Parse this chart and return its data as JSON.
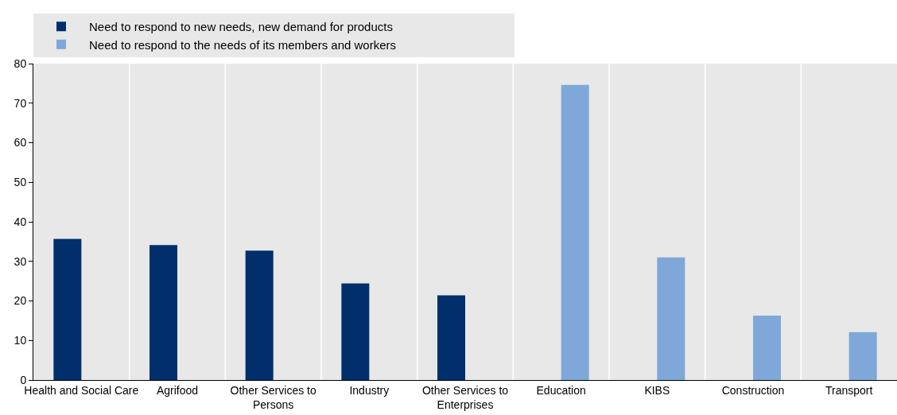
{
  "chart_data": {
    "type": "bar",
    "categories": [
      "Health and Social Care",
      "Agrifood",
      "Other Services to Persons",
      "Industry",
      "Other Services to Enterprises",
      "Education",
      "KIBS",
      "Construction",
      "Transport"
    ],
    "series": [
      {
        "name": "Need to respond to new needs, new demand for products",
        "color": "#002f6c",
        "values": [
          35.7,
          34.1,
          32.7,
          24.4,
          21.4,
          null,
          null,
          null,
          null
        ]
      },
      {
        "name": "Need to respond to the needs of its members and workers",
        "color": "#7fa8d9",
        "values": [
          null,
          null,
          null,
          null,
          null,
          74.6,
          31.0,
          16.3,
          12.1
        ]
      }
    ],
    "ylim": [
      0,
      80
    ],
    "yticks": [
      0,
      10,
      20,
      30,
      40,
      50,
      60,
      70,
      80
    ],
    "grid": "x",
    "legend": "top"
  }
}
